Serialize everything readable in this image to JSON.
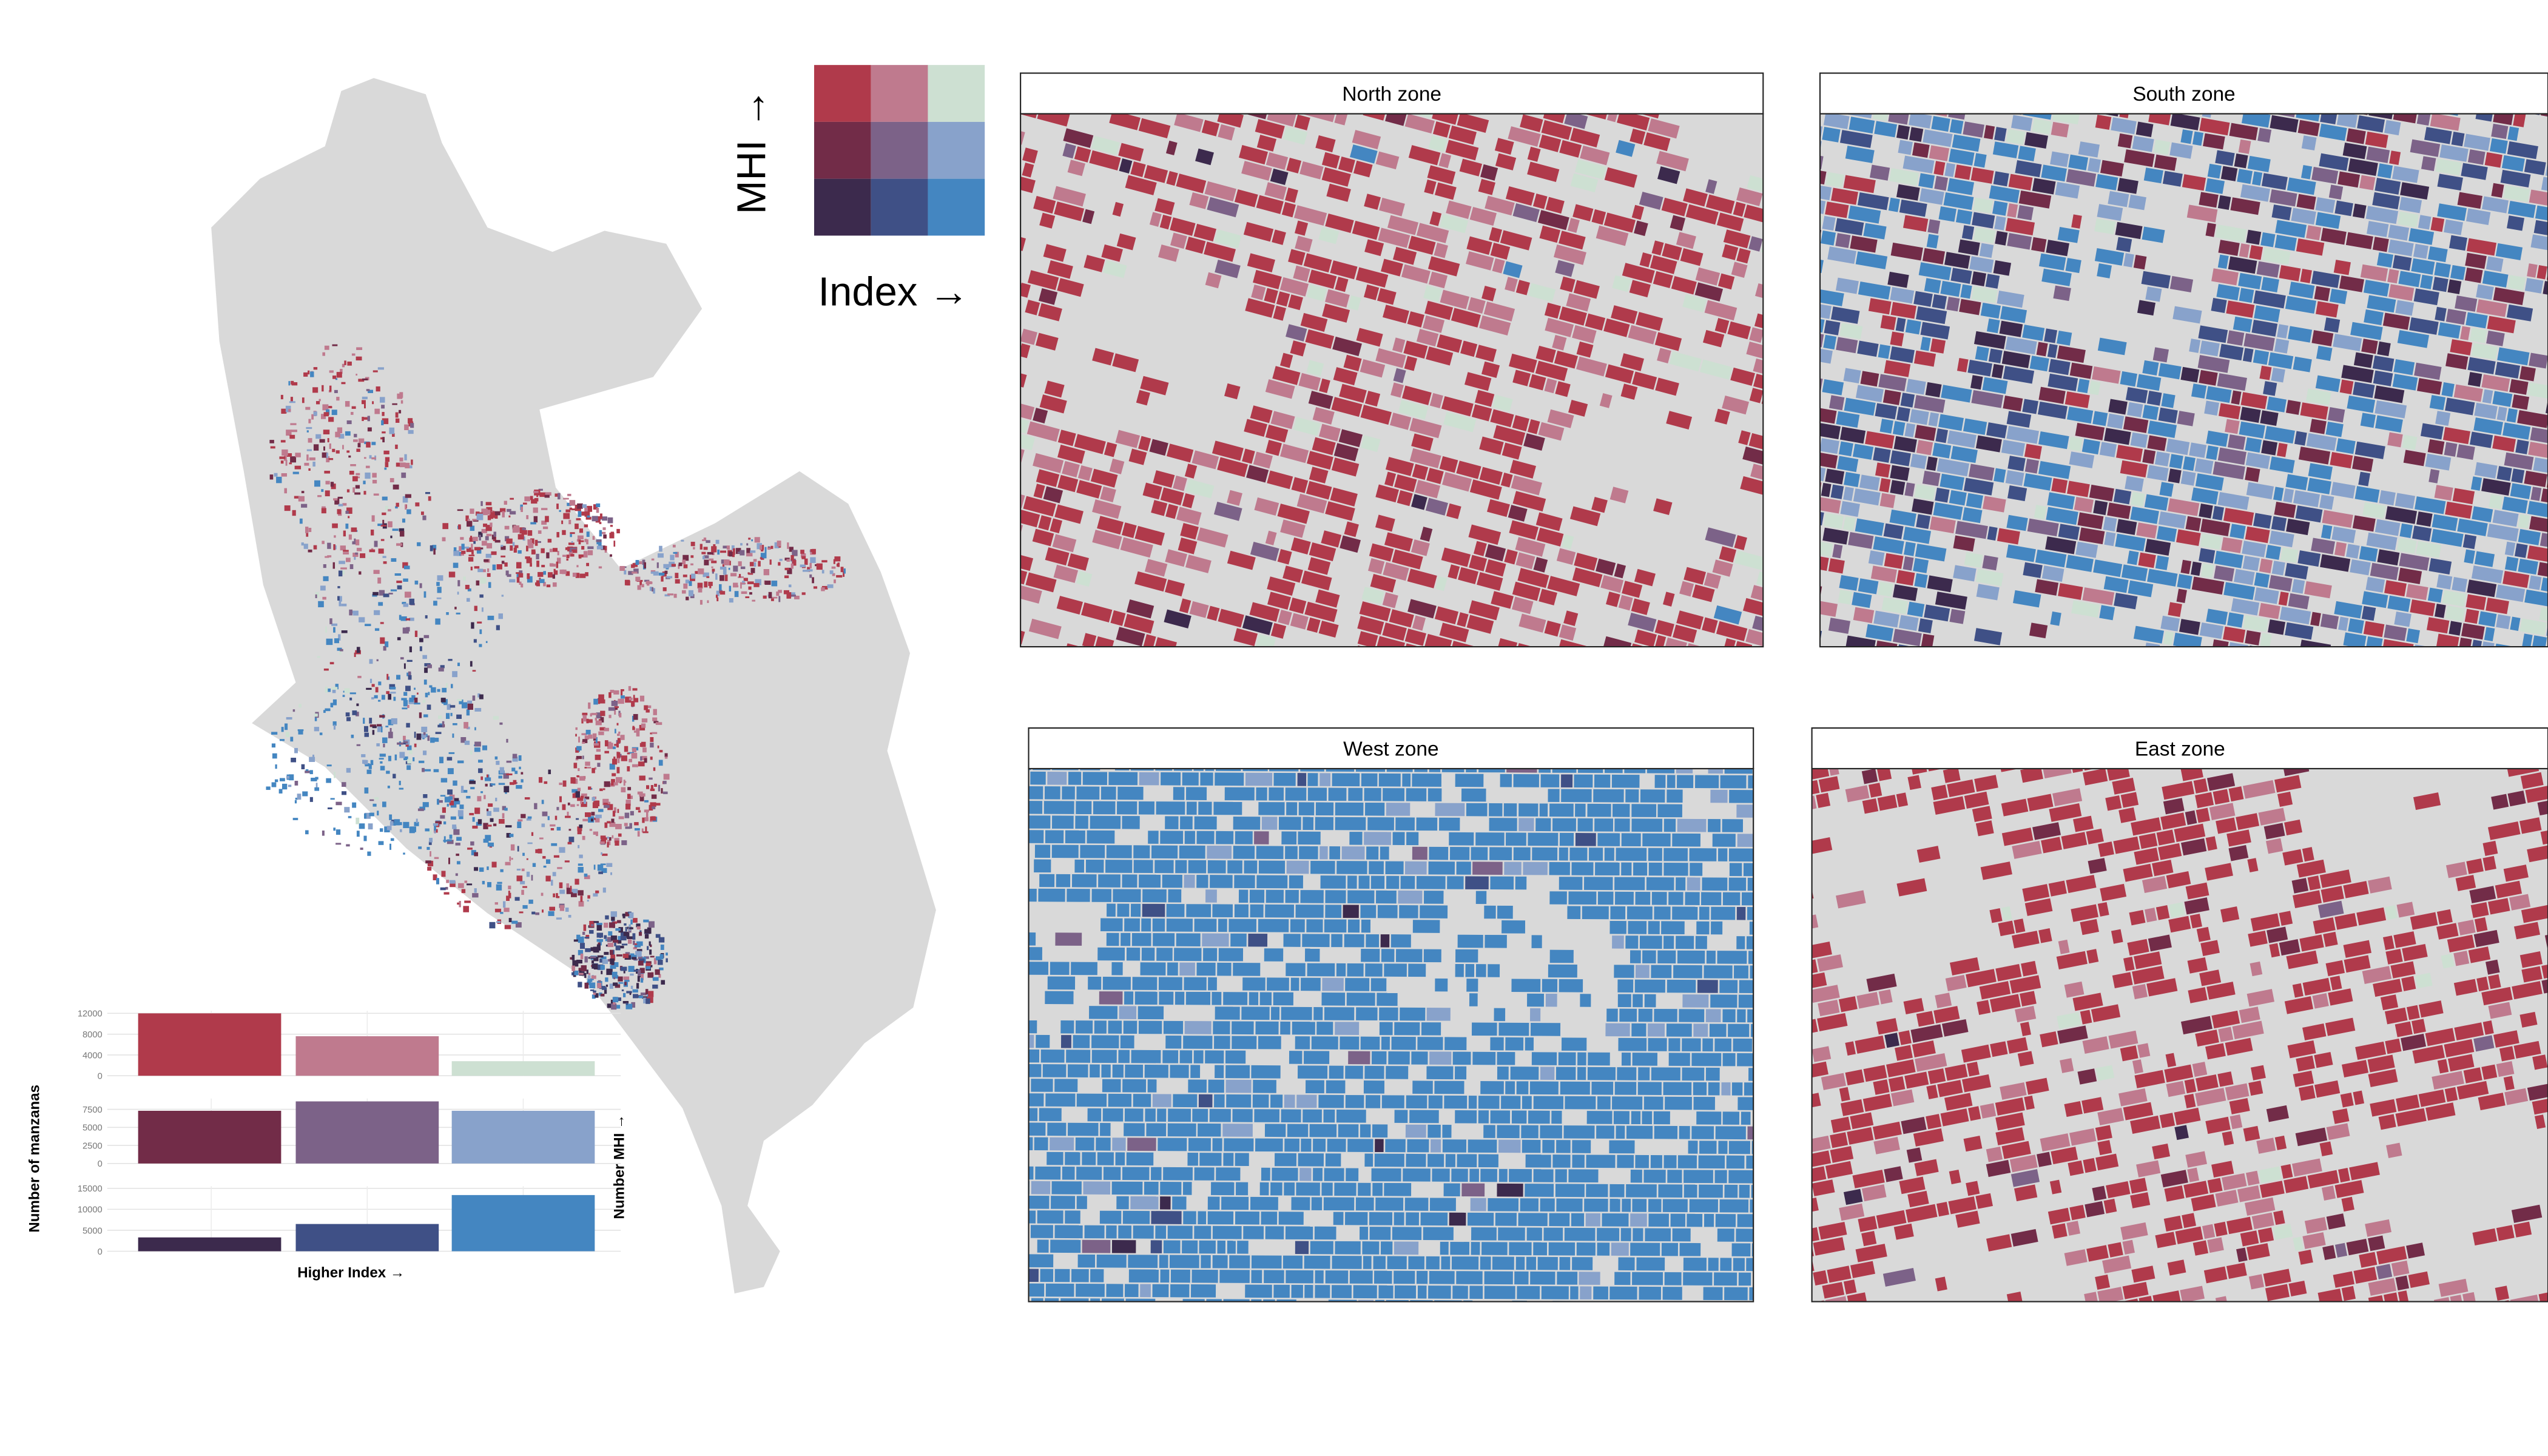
{
  "legend": {
    "y_label": "MHI →",
    "x_label": "Index →",
    "colors": [
      [
        "#b03a4b",
        "#bf7a8e",
        "#cde0d2"
      ],
      [
        "#722c48",
        "#7c6288",
        "#88a2cb"
      ],
      [
        "#3c2a4d",
        "#3f5086",
        "#4486c1"
      ]
    ]
  },
  "zones": [
    {
      "title": "North zone"
    },
    {
      "title": "South zone"
    },
    {
      "title": "West zone"
    },
    {
      "title": "East zone"
    }
  ],
  "bar_axes": {
    "y_label": "Number of manzanas",
    "x_label": "Higher Index →",
    "right_label": "Number MHI →"
  },
  "chart_data": [
    {
      "type": "bar",
      "values": [
        12000,
        7600,
        2800
      ],
      "colors": [
        "#b03a4b",
        "#bf7a8e",
        "#cde0d2"
      ],
      "ylim": [
        0,
        12500
      ],
      "yticks": [
        0,
        4000,
        8000,
        12000
      ],
      "grid": true
    },
    {
      "type": "bar",
      "values": [
        7300,
        8600,
        7300
      ],
      "colors": [
        "#722c48",
        "#7c6288",
        "#88a2cb"
      ],
      "ylim": [
        0,
        9000
      ],
      "yticks": [
        0,
        2500,
        5000,
        7500
      ],
      "grid": true
    },
    {
      "type": "bar",
      "values": [
        3300,
        6500,
        13400
      ],
      "colors": [
        "#3c2a4d",
        "#3f5086",
        "#4486c1"
      ],
      "ylim": [
        0,
        15500
      ],
      "yticks": [
        0,
        5000,
        10000,
        15000
      ],
      "grid": true
    }
  ]
}
